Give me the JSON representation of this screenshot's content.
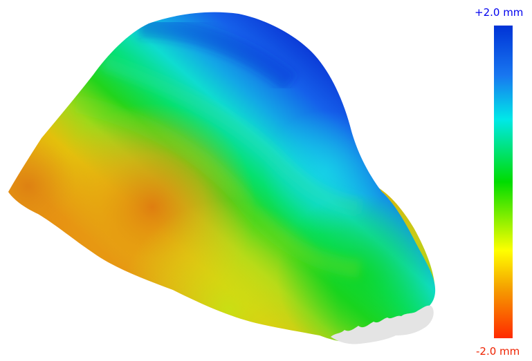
{
  "viewer": {
    "content": "deviation-colormap-surface",
    "colormap": [
      "#ff2a00",
      "#f5a000",
      "#ffff00",
      "#00dc00",
      "#00e8e8",
      "#1877f0",
      "#0033d6"
    ],
    "unmeasured_color": "#e4e4e4"
  },
  "scale": {
    "max_label": "+2.0 mm",
    "min_label": "-2.0 mm",
    "max_color": "#0000ee",
    "min_color": "#ee2200"
  }
}
